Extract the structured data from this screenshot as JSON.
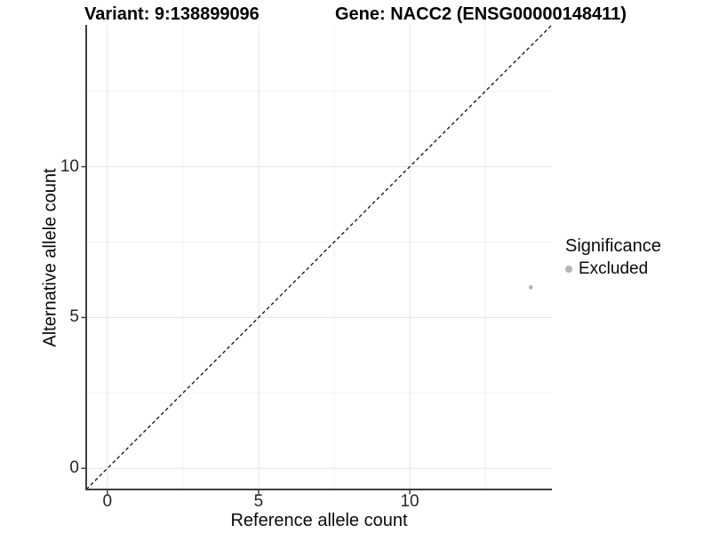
{
  "header": {
    "variant_title": "Variant: 9:138899096",
    "gene_title": "Gene: NACC2 (ENSG00000148411)"
  },
  "legend": {
    "title": "Significance",
    "items": [
      {
        "label": "Excluded",
        "color": "#b4b4b4"
      }
    ]
  },
  "colors": {
    "background": "#ffffff",
    "axis_line": "#3f3f3f",
    "tick_mark": "#3f3f3f",
    "tick_label": "#262626",
    "grid_major": "#e5e5e5",
    "grid_minor": "#f2f2f2",
    "reference_line": "#111111",
    "point": "#b4b4b4"
  },
  "chart_data": {
    "type": "scatter",
    "title": "Variant: 9:138899096 | Gene: NACC2 (ENSG00000148411)",
    "xlabel": "Reference allele count",
    "ylabel": "Alternative allele count",
    "xlim": [
      -0.7,
      14.7
    ],
    "ylim": [
      -0.7,
      14.7
    ],
    "x_ticks": [
      0,
      5,
      10
    ],
    "y_ticks": [
      0,
      5,
      10
    ],
    "x_minor_ticks": [
      2.5,
      7.5,
      12.5
    ],
    "y_minor_ticks": [
      2.5,
      7.5,
      12.5
    ],
    "grid": true,
    "legend_position": "right",
    "series": [
      {
        "name": "Excluded",
        "color": "#b4b4b4",
        "points": [
          {
            "x": 14,
            "y": 6
          }
        ]
      }
    ],
    "reference_line": {
      "kind": "identity",
      "style": "dashed",
      "color": "#111111"
    }
  }
}
